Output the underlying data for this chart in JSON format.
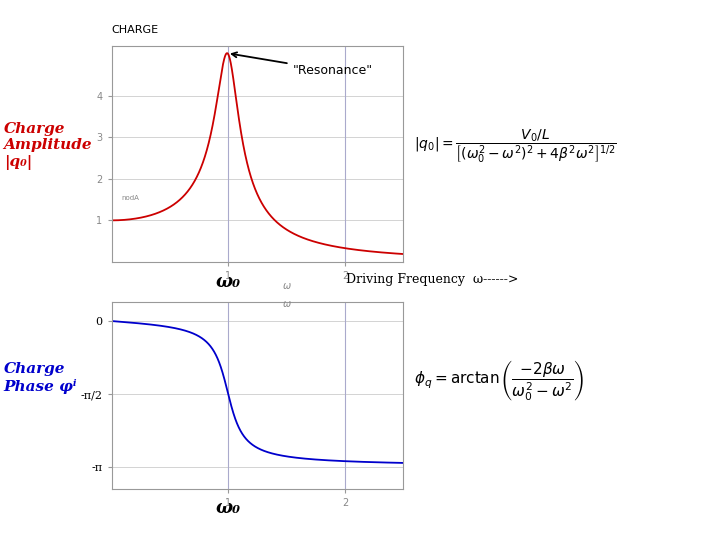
{
  "background_color": "#ffffff",
  "top_plot": {
    "title": "CHARGE",
    "ylabel_text": "Charge\nAmplitude\n|q₀|",
    "ylabel_color": "#cc0000",
    "curve_color": "#cc0000",
    "xlim": [
      0,
      2.5
    ],
    "ylim": [
      0,
      5.2
    ],
    "yticks": [
      1,
      2,
      3,
      4
    ],
    "ytick_labels": [
      "1",
      "2",
      "3",
      "4"
    ],
    "xticks": [
      1,
      2
    ],
    "xtick_labels": [
      "1",
      "2"
    ],
    "omega_tick_label": "ω",
    "omega0": 1.0,
    "beta": 0.1,
    "resonance_label": "\"Resonance\"",
    "xlabel_omega0": "ω₀",
    "driving_freq_label": "Driving Frequency  ω------>"
  },
  "bottom_plot": {
    "ylabel_text": "Charge\nPhase φⁱ",
    "ylabel_color": "#0000cc",
    "curve_color": "#0000cc",
    "xlim": [
      0,
      2.5
    ],
    "ylim": [
      -3.6,
      0.4
    ],
    "ytick_vals": [
      0,
      -1.5707963,
      -3.14159265
    ],
    "ytick_labels": [
      "0",
      "-π/2",
      "-π"
    ],
    "xticks": [
      1,
      2
    ],
    "xtick_labels": [
      "1",
      "2"
    ],
    "omega_tick_label": "ω",
    "omega0": 1.0,
    "beta": 0.1,
    "xlabel_omega0": "ω₀"
  },
  "grid_color": "#cccccc",
  "vline_color": "#aaaacc",
  "spine_color": "#999999",
  "nodA_label": "nodA"
}
